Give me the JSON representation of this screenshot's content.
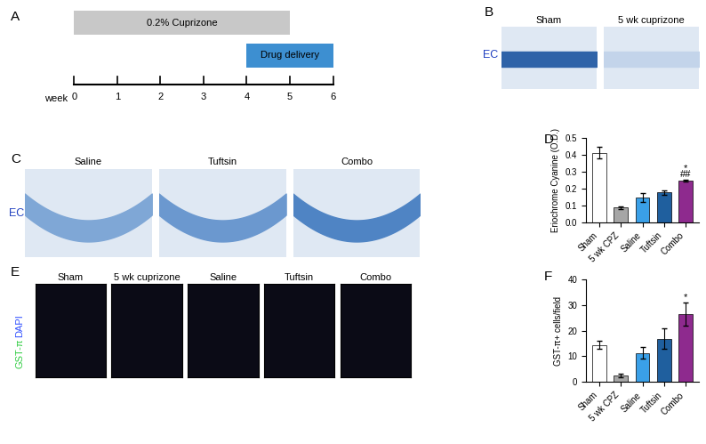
{
  "panels": {
    "A": {
      "letter": "A",
      "axis_label": "week",
      "ticks": [
        0,
        1,
        2,
        3,
        4,
        5,
        6
      ],
      "periods": [
        {
          "label": "0.2% Cuprizone",
          "start": 0,
          "end": 5,
          "color": "#c8c8c8"
        },
        {
          "label": "Drug delivery",
          "start": 4,
          "end": 6,
          "color": "#3d8fd1"
        }
      ]
    },
    "B": {
      "letter": "B",
      "stain": "EC",
      "images": [
        "Sham",
        "5 wk cuprizone"
      ]
    },
    "C": {
      "letter": "C",
      "stain": "EC",
      "images": [
        "Saline",
        "Tuftsin",
        "Combo"
      ]
    },
    "E": {
      "letter": "E",
      "stain": [
        {
          "text": "GST-π",
          "color": "#2ecc40"
        },
        {
          "text": "DAPI",
          "color": "#3050ff"
        }
      ],
      "images": [
        "Sham",
        "5 wk cuprizone",
        "Saline",
        "Tuftsin",
        "Combo"
      ]
    }
  },
  "chart_data": [
    {
      "type": "bar",
      "panel_label": "D",
      "ylabel": "Eriochrome Cyanine (O.D.)",
      "categories": [
        "Sham",
        "5 wk CPZ",
        "Saline",
        "Tuftsin",
        "Combo"
      ],
      "values": [
        0.41,
        0.085,
        0.145,
        0.175,
        0.245
      ],
      "errors": [
        0.035,
        0.006,
        0.025,
        0.012,
        0.006
      ],
      "colors": [
        "#ffffff",
        "#a6a6a6",
        "#3aa0e8",
        "#1f5f9e",
        "#8e2a8e"
      ],
      "ylim": [
        0,
        0.5
      ],
      "yticks": [
        {
          "value": 0,
          "label": "0.0"
        },
        0.1,
        0.2,
        0.3,
        0.4,
        0.5
      ],
      "annotations": [
        {
          "category": "Combo",
          "text": "##"
        },
        {
          "category": "Combo",
          "text": "*"
        }
      ]
    },
    {
      "type": "bar",
      "panel_label": "F",
      "ylabel": "GST-π+ cells/field",
      "categories": [
        "Sham",
        "5 wk CPZ",
        "Saline",
        "Tuftsin",
        "Combo"
      ],
      "values": [
        14.5,
        2.5,
        11.3,
        16.8,
        26.5
      ],
      "errors": [
        1.5,
        0.6,
        2.2,
        4.0,
        4.5
      ],
      "colors": [
        "#ffffff",
        "#a6a6a6",
        "#3aa0e8",
        "#1f5f9e",
        "#8e2a8e"
      ],
      "ylim": [
        0,
        40
      ],
      "yticks": [
        0,
        10,
        20,
        30,
        40
      ],
      "annotations": [
        {
          "category": "Combo",
          "text": "*"
        }
      ]
    }
  ]
}
